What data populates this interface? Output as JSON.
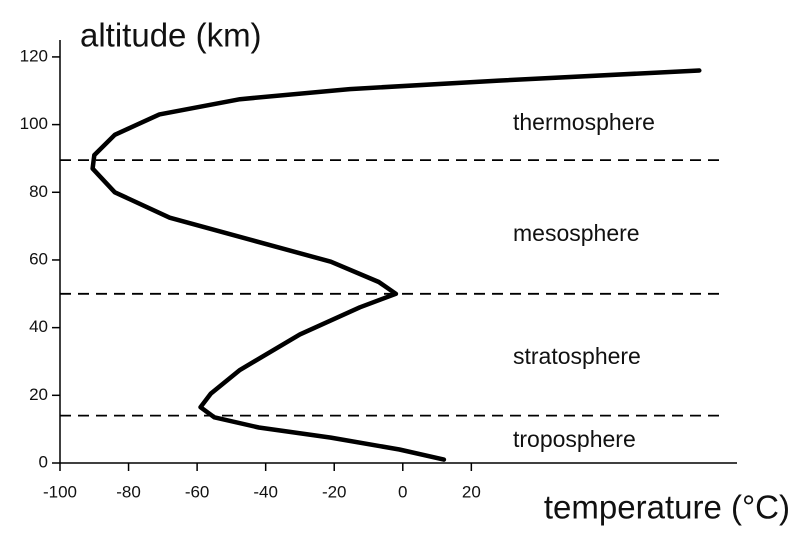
{
  "chart_data": {
    "type": "line",
    "title": "altitude (km)",
    "x_label": "temperature (°C)",
    "x": [
      12,
      -1,
      -21,
      -42,
      -55,
      -59,
      -56,
      -47.5,
      -30,
      -12.5,
      -2,
      -7,
      -21,
      -44.5,
      -68,
      -84,
      -90.5,
      -90,
      -84,
      -71,
      -47.5,
      -15.5,
      28,
      86.5
    ],
    "values": [
      1,
      4,
      7.5,
      10.5,
      13.5,
      16.5,
      20.5,
      27.5,
      38,
      46,
      50,
      53.5,
      59.5,
      66,
      72.5,
      80,
      87,
      91,
      97,
      103,
      107.5,
      110.5,
      113,
      116
    ],
    "color": "#000000",
    "xlim": [
      -100,
      97.5
    ],
    "xticks": [
      -100,
      -80,
      -60,
      -40,
      -20,
      0,
      20
    ],
    "ylim": [
      0,
      125
    ],
    "yticks": [
      0,
      20,
      40,
      60,
      80,
      100,
      120
    ],
    "boundaries": [
      14,
      50,
      89.5
    ],
    "layers": [
      "troposphere",
      "stratosphere",
      "mesosphere",
      "thermosphere"
    ]
  }
}
